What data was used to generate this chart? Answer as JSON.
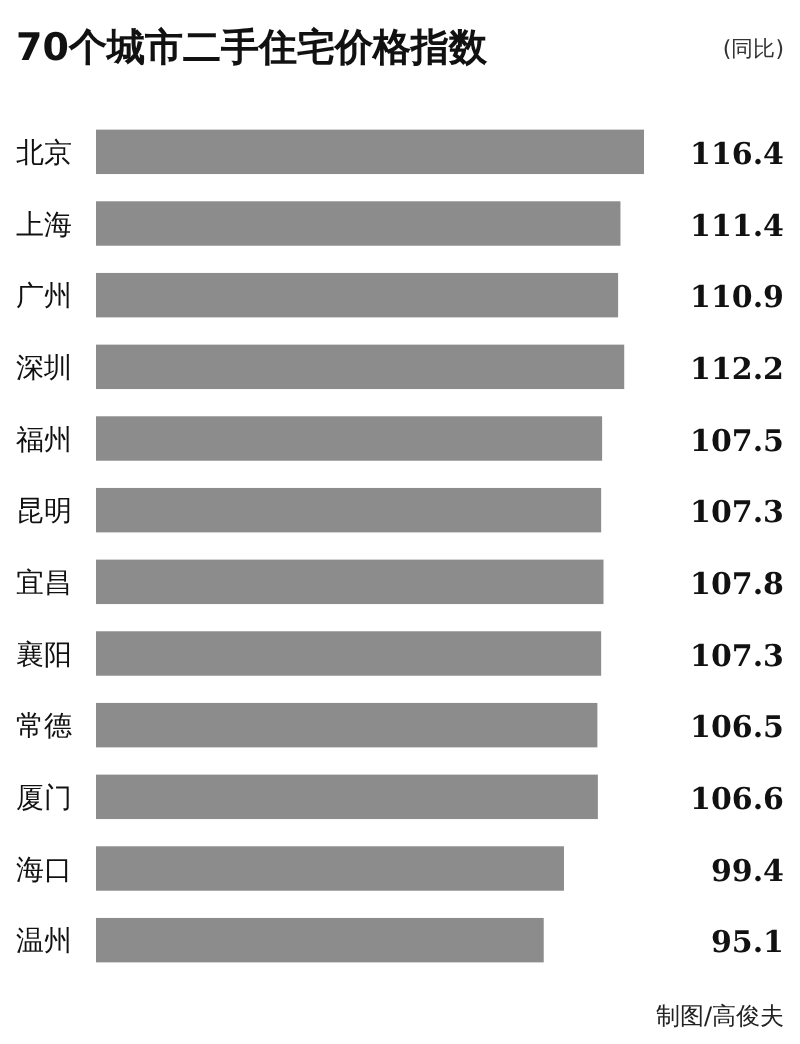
{
  "chart_data": {
    "type": "bar",
    "orientation": "horizontal",
    "title": "70个城市二手住宅价格指数",
    "subtitle": "(同比)",
    "categories": [
      "北京",
      "上海",
      "广州",
      "深圳",
      "福州",
      "昆明",
      "宜昌",
      "襄阳",
      "常德",
      "厦门",
      "海口",
      "温州"
    ],
    "values": [
      116.4,
      111.4,
      110.9,
      112.2,
      107.5,
      107.3,
      107.8,
      107.3,
      106.5,
      106.6,
      99.4,
      95.1
    ],
    "color": "#8c8c8c",
    "data_labels": true,
    "annotations": [
      "制图/高俊夫"
    ]
  }
}
